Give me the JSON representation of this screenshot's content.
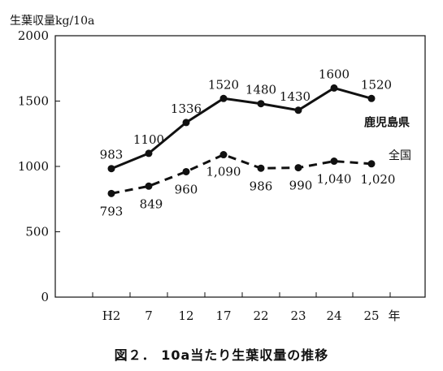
{
  "caption": "図２． 10a当たり生葉収量の推移",
  "chart_data": {
    "type": "line",
    "ylabel": "生葉収量kg/10a",
    "xlabel": "年",
    "ylim": [
      0,
      2000
    ],
    "yticks": [
      "0",
      "500",
      "1000",
      "1500",
      "2000"
    ],
    "categories": [
      "H2",
      "7",
      "12",
      "17",
      "22",
      "23",
      "24",
      "25"
    ],
    "grid": false,
    "series": [
      {
        "name": "鹿児島県",
        "style": "solid",
        "color": "#111111",
        "values": [
          983,
          1100,
          1336,
          1520,
          1480,
          1430,
          1600,
          1520
        ],
        "labels": [
          "983",
          "1100",
          "1336",
          "1520",
          "1480",
          "1430",
          "1600",
          "1520"
        ]
      },
      {
        "name": "全国",
        "style": "dashed",
        "color": "#111111",
        "values": [
          793,
          849,
          960,
          1090,
          986,
          990,
          1040,
          1020
        ],
        "labels": [
          "793",
          "849",
          "960",
          "1,090",
          "986",
          "990",
          "1,040",
          "1,020"
        ]
      }
    ]
  }
}
